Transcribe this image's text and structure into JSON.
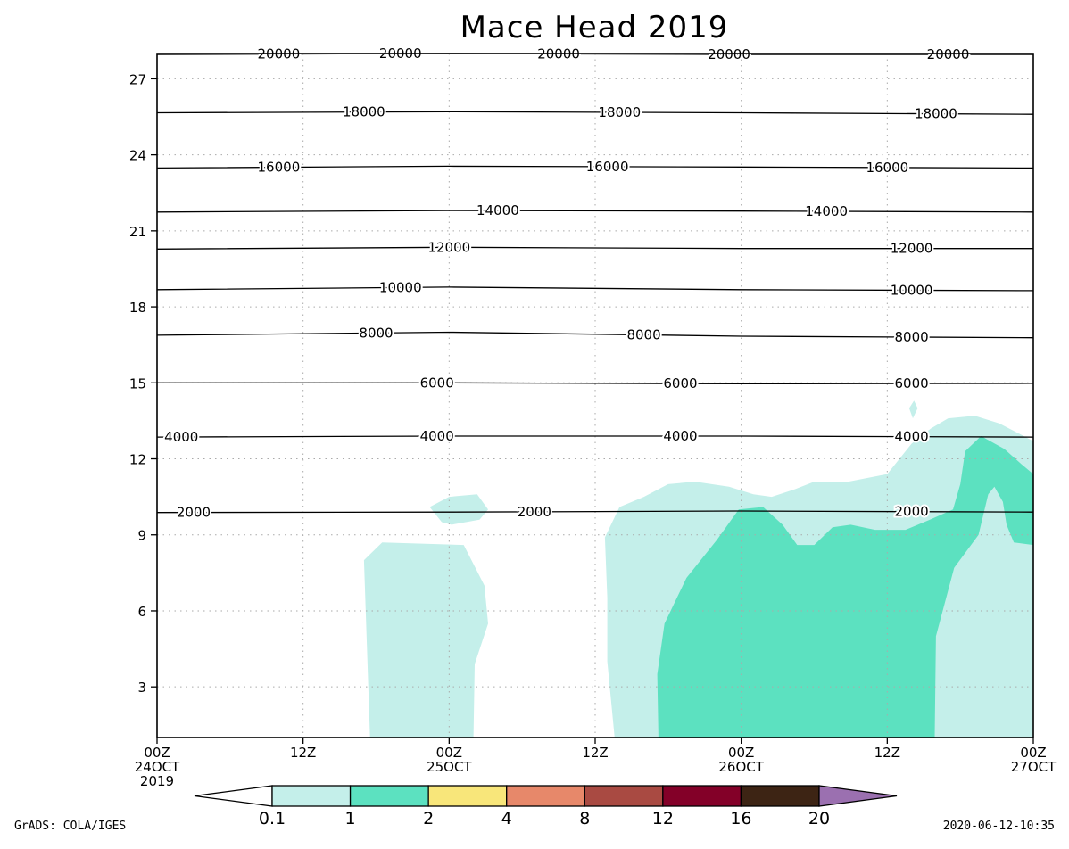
{
  "chart_data": {
    "type": "contour",
    "title": "Mace Head 2019",
    "xlabel": "",
    "ylabel": "",
    "x_ticks": [
      {
        "line1": "00Z",
        "line2": "24OCT",
        "line3": "2019",
        "hours": 0
      },
      {
        "line1": "12Z",
        "line2": "",
        "line3": "",
        "hours": 12
      },
      {
        "line1": "00Z",
        "line2": "25OCT",
        "line3": "",
        "hours": 24
      },
      {
        "line1": "12Z",
        "line2": "",
        "line3": "",
        "hours": 36
      },
      {
        "line1": "00Z",
        "line2": "26OCT",
        "line3": "",
        "hours": 48
      },
      {
        "line1": "12Z",
        "line2": "",
        "line3": "",
        "hours": 60
      },
      {
        "line1": "00Z",
        "line2": "27OCT",
        "line3": "",
        "hours": 72
      }
    ],
    "xlim_hours": [
      0,
      72
    ],
    "y_ticks": [
      3,
      6,
      9,
      12,
      15,
      18,
      21,
      24,
      27
    ],
    "ylim": [
      1,
      28
    ],
    "grid": true,
    "contour_lines": [
      {
        "level": "2000",
        "y": [
          9.88,
          9.9,
          9.94,
          9.9
        ],
        "labels_at_hours": [
          3,
          31,
          62
        ]
      },
      {
        "level": "4000",
        "y": [
          12.86,
          12.9,
          12.9,
          12.86
        ],
        "labels_at_hours": [
          2,
          23,
          43,
          62
        ]
      },
      {
        "level": "6000",
        "y": [
          15.0,
          15.0,
          14.96,
          14.98
        ],
        "labels_at_hours": [
          23,
          43,
          62
        ]
      },
      {
        "level": "8000",
        "y": [
          16.88,
          17.0,
          16.84,
          16.78
        ],
        "labels_at_hours": [
          18,
          40,
          62
        ]
      },
      {
        "level": "10000",
        "y": [
          18.68,
          18.78,
          18.68,
          18.64
        ],
        "labels_at_hours": [
          20,
          62
        ]
      },
      {
        "level": "12000",
        "y": [
          20.28,
          20.35,
          20.3,
          20.3
        ],
        "labels_at_hours": [
          24,
          62
        ]
      },
      {
        "level": "14000",
        "y": [
          21.74,
          21.8,
          21.78,
          21.74
        ],
        "labels_at_hours": [
          28,
          55
        ]
      },
      {
        "level": "16000",
        "y": [
          23.48,
          23.55,
          23.52,
          23.48
        ],
        "labels_at_hours": [
          10,
          37,
          60
        ]
      },
      {
        "level": "18000",
        "y": [
          25.66,
          25.7,
          25.66,
          25.6
        ],
        "labels_at_hours": [
          17,
          38,
          64
        ]
      },
      {
        "level": "20000",
        "y": [
          27.96,
          28.0,
          27.96,
          27.96
        ],
        "labels_at_hours": [
          10,
          20,
          33,
          47,
          65
        ]
      }
    ],
    "shading_levels": [
      "0.1",
      "1",
      "2",
      "4",
      "8",
      "12",
      "16",
      "20"
    ],
    "shading_colors": [
      "#ffffff",
      "#c4efea",
      "#5ce1c0",
      "#f8e67a",
      "#e7886a",
      "#a94a42",
      "#830028",
      "#3d2414",
      "#9b70b0"
    ],
    "shaded_regions": [
      {
        "level_index": 1,
        "name": "cloud-a",
        "points": [
          [
            17.5,
            1
          ],
          [
            17.0,
            8.0
          ],
          [
            18.5,
            8.7
          ],
          [
            25.2,
            8.6
          ],
          [
            26.9,
            7.0
          ],
          [
            27.2,
            5.5
          ],
          [
            26.1,
            3.9
          ],
          [
            26.0,
            1
          ]
        ]
      },
      {
        "level_index": 1,
        "name": "cloud-b",
        "points": [
          [
            22.4,
            10.1
          ],
          [
            24.0,
            10.5
          ],
          [
            26.3,
            10.6
          ],
          [
            27.2,
            10.0
          ],
          [
            26.5,
            9.6
          ],
          [
            24.2,
            9.4
          ],
          [
            23.4,
            9.5
          ]
        ]
      },
      {
        "level_index": 1,
        "name": "cloud-c",
        "points": [
          [
            37.6,
            1
          ],
          [
            37.0,
            4.0
          ],
          [
            37.0,
            6.5
          ],
          [
            36.8,
            8.9
          ],
          [
            38.0,
            10.1
          ],
          [
            40.0,
            10.5
          ],
          [
            42.0,
            11.0
          ],
          [
            44.2,
            11.1
          ],
          [
            47.0,
            10.9
          ],
          [
            49.0,
            10.6
          ],
          [
            50.5,
            10.5
          ],
          [
            52.4,
            10.8
          ],
          [
            54.0,
            11.1
          ],
          [
            56.8,
            11.1
          ],
          [
            60.0,
            11.4
          ],
          [
            62.0,
            12.6
          ],
          [
            63.6,
            13.2
          ],
          [
            65.0,
            13.6
          ],
          [
            67.2,
            13.7
          ],
          [
            69.2,
            13.4
          ],
          [
            72,
            12.7
          ],
          [
            72,
            1
          ]
        ]
      },
      {
        "level_index": 1,
        "name": "cloud-d",
        "points": [
          [
            71.2,
            9.8
          ],
          [
            72,
            9.8
          ],
          [
            72,
            9.2
          ],
          [
            71.2,
            9.2
          ]
        ]
      },
      {
        "level_index": 1,
        "name": "cloud-e",
        "points": [
          [
            61.8,
            14.0
          ],
          [
            62.2,
            14.3
          ],
          [
            62.5,
            14.0
          ],
          [
            62.1,
            13.6
          ]
        ]
      },
      {
        "level_index": 2,
        "name": "liquid-a",
        "points": [
          [
            41.2,
            1
          ],
          [
            41.1,
            3.5
          ],
          [
            41.7,
            5.5
          ],
          [
            43.5,
            7.3
          ],
          [
            46.0,
            8.8
          ],
          [
            47.8,
            10.0
          ],
          [
            49.8,
            10.1
          ],
          [
            51.4,
            9.4
          ],
          [
            52.6,
            8.6
          ],
          [
            54.0,
            8.6
          ],
          [
            55.5,
            9.3
          ],
          [
            57.0,
            9.4
          ],
          [
            59.0,
            9.2
          ],
          [
            61.5,
            9.2
          ],
          [
            63.5,
            9.6
          ],
          [
            65.4,
            10.0
          ],
          [
            66.0,
            11.0
          ],
          [
            66.4,
            12.3
          ],
          [
            67.7,
            12.9
          ],
          [
            69.6,
            12.4
          ],
          [
            71.0,
            11.8
          ],
          [
            72,
            11.4
          ],
          [
            72,
            8.6
          ],
          [
            70.4,
            8.7
          ],
          [
            69.8,
            9.4
          ],
          [
            69.5,
            10.3
          ],
          [
            68.8,
            10.9
          ],
          [
            68.3,
            10.6
          ],
          [
            67.5,
            9.0
          ],
          [
            65.5,
            7.7
          ],
          [
            64.0,
            5.0
          ],
          [
            63.9,
            1
          ]
        ]
      }
    ]
  },
  "colorbar_labels": [
    "0.1",
    "1",
    "2",
    "4",
    "8",
    "12",
    "16",
    "20"
  ],
  "footer": {
    "left": "GrADS: COLA/IGES",
    "right": "2020-06-12-10:35"
  }
}
